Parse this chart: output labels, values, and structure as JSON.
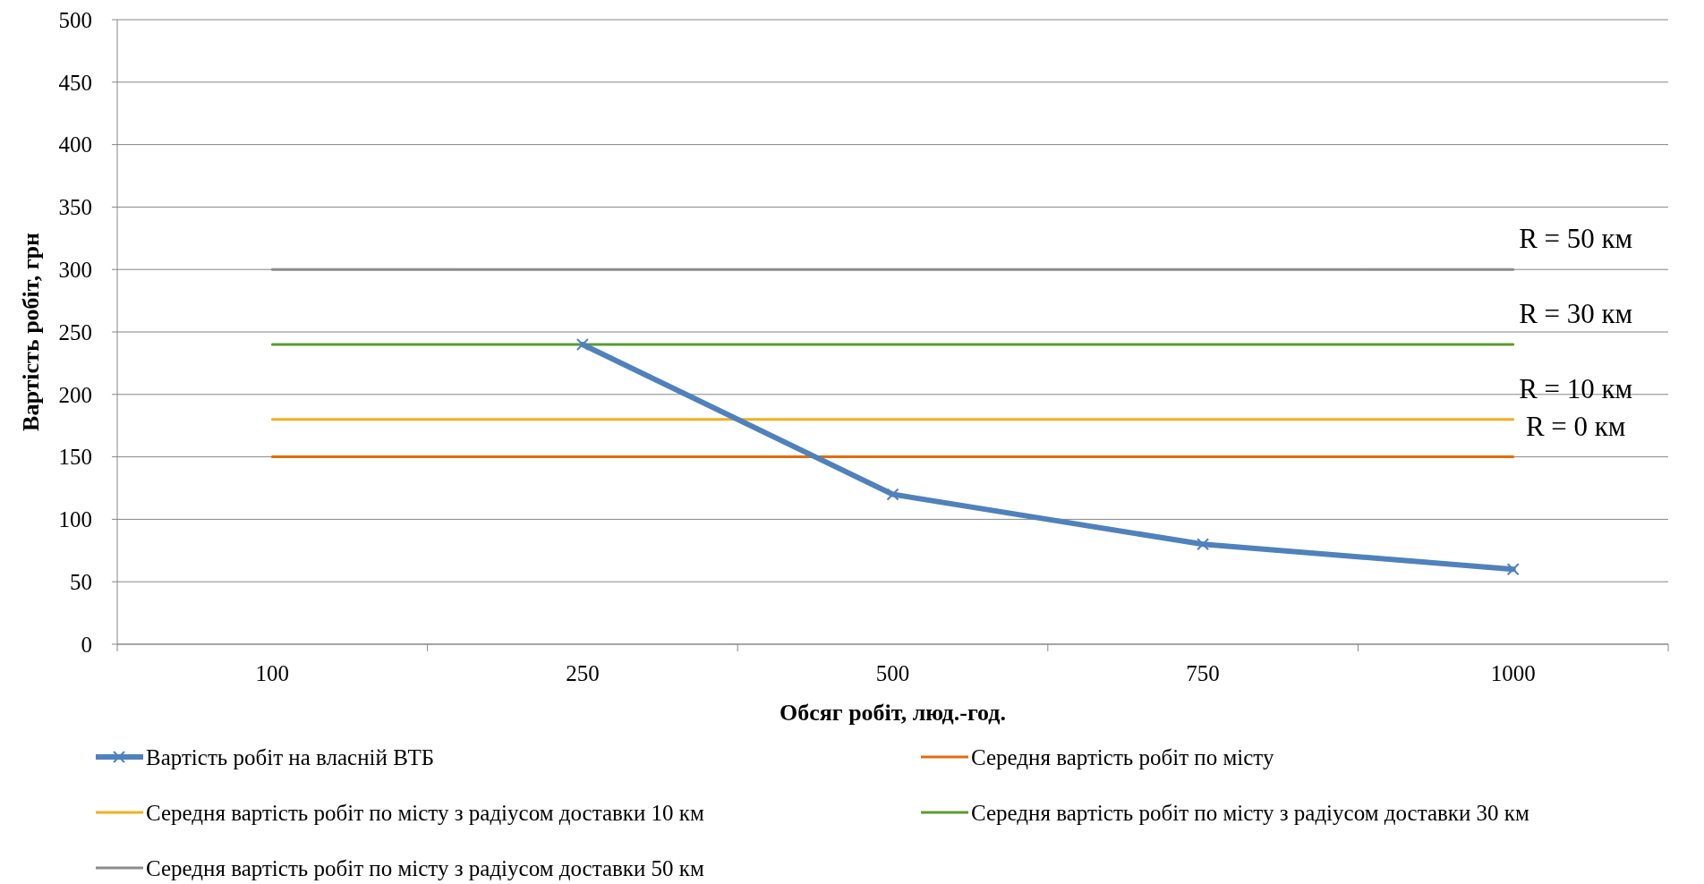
{
  "chart_data": {
    "type": "line",
    "xlabel": "Обсяг робіт, люд.-год.",
    "ylabel": "Вартість робіт, грн",
    "categories": [
      "100",
      "250",
      "500",
      "750",
      "1000"
    ],
    "ylim": [
      0,
      500
    ],
    "yticks": [
      0,
      50,
      100,
      150,
      200,
      250,
      300,
      350,
      400,
      450,
      500
    ],
    "grid": "y",
    "legend": "bottom",
    "line_style": "solid",
    "series": [
      {
        "name": "Вартість робіт на власній ВТБ",
        "color": "#4f81bd",
        "values": [
          null,
          240,
          120,
          80,
          60
        ],
        "marker": "cross"
      },
      {
        "name": "Середня вартість робіт по місту",
        "color": "#e46c0a",
        "values": [
          150,
          150,
          150,
          150,
          150
        ],
        "marker": "none"
      },
      {
        "name": "Середня вартість робіт по місту з радіусом доставки 10 км",
        "color": "#f2b01e",
        "values": [
          180,
          180,
          180,
          180,
          180
        ],
        "marker": "none"
      },
      {
        "name": "Середня вартість робіт по місту з радіусом доставки 30 км",
        "color": "#5b9b35",
        "values": [
          240,
          240,
          240,
          240,
          240
        ],
        "marker": "none"
      },
      {
        "name": "Середня вартість робіт по місту з радіусом доставки 50 км",
        "color": "#8c8c8c",
        "values": [
          300,
          300,
          300,
          300,
          300
        ],
        "marker": "none"
      }
    ],
    "annotations": [
      {
        "text": "R = 50 км",
        "x": "1000",
        "y": 300
      },
      {
        "text": "R = 30 км",
        "x": "1000",
        "y": 240
      },
      {
        "text": "R = 10 км",
        "x": "1000",
        "y": 180
      },
      {
        "text": "R = 0 км",
        "x": "1000",
        "y": 150
      }
    ]
  }
}
